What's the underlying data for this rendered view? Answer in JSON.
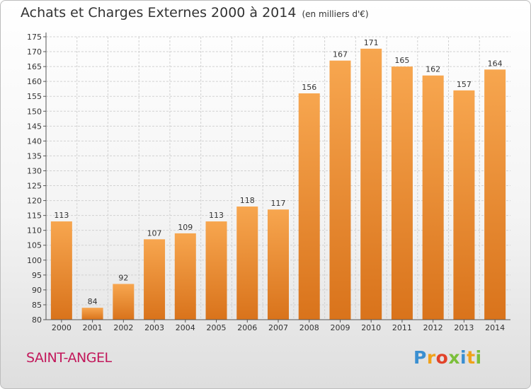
{
  "chart_data": {
    "type": "bar",
    "title": "Achats et Charges Externes 2000 à 2014",
    "subtitle": "(en milliers d'€)",
    "categories": [
      "2000",
      "2001",
      "2002",
      "2003",
      "2004",
      "2005",
      "2006",
      "2007",
      "2008",
      "2009",
      "2010",
      "2011",
      "2012",
      "2013",
      "2014"
    ],
    "values": [
      113,
      84,
      92,
      107,
      109,
      113,
      118,
      117,
      156,
      167,
      171,
      165,
      162,
      157,
      164
    ],
    "ylim": [
      80,
      175
    ],
    "yticks": [
      80,
      85,
      90,
      95,
      100,
      105,
      110,
      115,
      120,
      125,
      130,
      135,
      140,
      145,
      150,
      155,
      160,
      165,
      170,
      175
    ],
    "grid": true,
    "bar_color_top": "#f7a64f",
    "bar_color_bottom": "#d9731b"
  },
  "footer": {
    "commune": "SAINT-ANGEL",
    "logo_letters": [
      {
        "ch": "P",
        "color": "#3a8fd1"
      },
      {
        "ch": "r",
        "color": "#f0a21a"
      },
      {
        "ch": "o",
        "color": "#e2432a"
      },
      {
        "ch": "x",
        "color": "#7bbf3a"
      },
      {
        "ch": "i",
        "color": "#3a8fd1"
      },
      {
        "ch": "t",
        "color": "#f0a21a"
      },
      {
        "ch": "i",
        "color": "#7bbf3a"
      }
    ]
  }
}
